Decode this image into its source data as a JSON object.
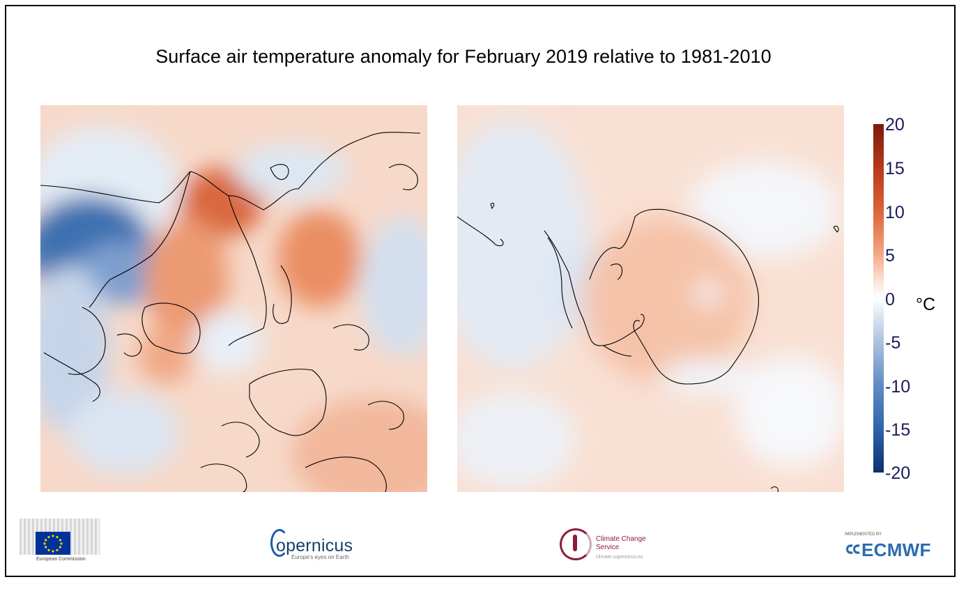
{
  "title": "Surface air temperature anomaly for February 2019 relative to 1981-2010",
  "panels": [
    {
      "hemisphere": "north",
      "projection": "polar stereographic"
    },
    {
      "hemisphere": "south",
      "projection": "polar stereographic"
    }
  ],
  "colorbar": {
    "ticks": [
      "20",
      "15",
      "10",
      "5",
      "0",
      "-5",
      "-10",
      "-15",
      "-20"
    ],
    "unit": "°C",
    "range": [
      -20,
      20
    ],
    "colors": {
      "max": "#7a1a0e",
      "warm": "#dd6438",
      "zero": "#ffffff",
      "cool": "#5f8cc4",
      "min": "#0d2f6e"
    }
  },
  "logos": {
    "eu": {
      "text": "European Commission"
    },
    "copernicus": {
      "name": "opernicus",
      "sub": "Europe's eyes on Earth"
    },
    "c3s": {
      "name": "Climate Change Service",
      "sub": "climate.copernicus.eu"
    },
    "ecmwf": {
      "name": "ECMWF",
      "top": "IMPLEMENTED BY"
    }
  }
}
